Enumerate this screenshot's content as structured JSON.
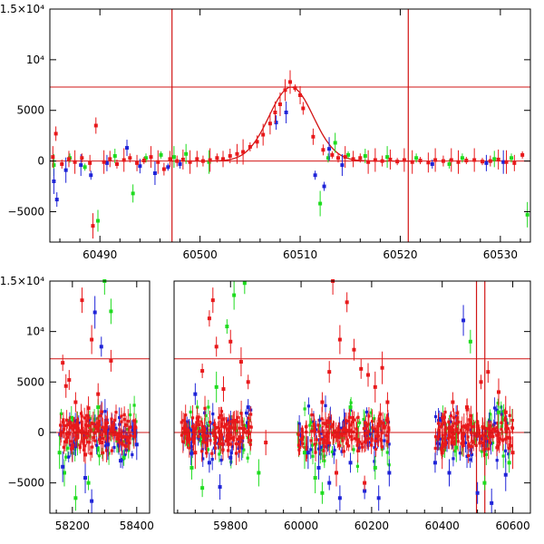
{
  "colors": {
    "red": "#e8191b",
    "green": "#1fdc1f",
    "blue": "#1f24d8",
    "line": "#d21414",
    "axis": "#000000"
  },
  "chart_data": [
    {
      "type": "scatter",
      "title": "",
      "xlabel": "",
      "ylabel": "",
      "xlim": [
        60485,
        60533
      ],
      "ylim": [
        -8000,
        15000
      ],
      "x_ticks": [
        60490,
        60500,
        60510,
        60520,
        60530
      ],
      "x_tick_labels": [
        "60490",
        "60500",
        "60510",
        "60520",
        "60530"
      ],
      "y_ticks": [
        -5000,
        0,
        5000,
        10000,
        15000
      ],
      "y_tick_labels": [
        "−5000",
        "0",
        "5000",
        "10⁴",
        "1.5×10⁴"
      ],
      "hlines": [
        0,
        7300
      ],
      "vlines": [
        60497.2,
        60520.8
      ],
      "model_curve": {
        "peak_x": 60509.1,
        "peak_y": 7300,
        "color": "red"
      },
      "series": [
        {
          "color": "red",
          "points": [
            [
              60485.3,
              400
            ],
            [
              60485.6,
              2700
            ],
            [
              60486.2,
              -300
            ],
            [
              60486.9,
              200
            ],
            [
              60487.5,
              -100
            ],
            [
              60488.2,
              300
            ],
            [
              60489.0,
              -200
            ],
            [
              60489.6,
              3500
            ],
            [
              60489.3,
              -6400
            ],
            [
              60490.4,
              -100
            ],
            [
              60491.0,
              200
            ],
            [
              60491.7,
              -300
            ],
            [
              60492.4,
              100
            ],
            [
              60493.0,
              300
            ],
            [
              60493.7,
              -200
            ],
            [
              60494.4,
              50
            ],
            [
              60495.1,
              400
            ],
            [
              60495.8,
              -100
            ],
            [
              60496.4,
              -800
            ],
            [
              60497.0,
              200
            ],
            [
              60497.7,
              0
            ],
            [
              60498.3,
              150
            ],
            [
              60499.0,
              -100
            ],
            [
              60499.7,
              200
            ],
            [
              60500.3,
              0
            ],
            [
              60501.0,
              100
            ],
            [
              60501.7,
              300
            ],
            [
              60502.3,
              200
            ],
            [
              60503.0,
              500
            ],
            [
              60503.7,
              700
            ],
            [
              60504.3,
              900
            ],
            [
              60505.0,
              1400
            ],
            [
              60505.7,
              1900
            ],
            [
              60506.3,
              2600
            ],
            [
              60507.0,
              3700
            ],
            [
              60507.5,
              4800
            ],
            [
              60508.0,
              5600
            ],
            [
              60508.5,
              7000
            ],
            [
              60509.0,
              7800
            ],
            [
              60509.5,
              7200
            ],
            [
              60510.0,
              6500
            ],
            [
              60510.3,
              5200
            ],
            [
              60511.3,
              2400
            ],
            [
              60512.3,
              1100
            ],
            [
              60513.2,
              600
            ],
            [
              60513.8,
              300
            ],
            [
              60514.5,
              400
            ],
            [
              60515.3,
              200
            ],
            [
              60516.0,
              300
            ],
            [
              60516.8,
              -100
            ],
            [
              60517.5,
              100
            ],
            [
              60518.2,
              0
            ],
            [
              60519.0,
              150
            ],
            [
              60519.7,
              -50
            ],
            [
              60520.4,
              100
            ],
            [
              60521.2,
              -100
            ],
            [
              60522.0,
              50
            ],
            [
              60522.8,
              -150
            ],
            [
              60523.5,
              100
            ],
            [
              60524.3,
              0
            ],
            [
              60525.1,
              100
            ],
            [
              60525.8,
              -100
            ],
            [
              60526.6,
              50
            ],
            [
              60527.4,
              100
            ],
            [
              60528.2,
              -50
            ],
            [
              60529.0,
              0
            ],
            [
              60529.8,
              150
            ],
            [
              60530.6,
              -100
            ],
            [
              60531.4,
              -200
            ],
            [
              60532.2,
              600
            ]
          ]
        },
        {
          "color": "green",
          "points": [
            [
              60485.4,
              -400
            ],
            [
              60487.0,
              300
            ],
            [
              60488.5,
              -600
            ],
            [
              60489.8,
              -5900
            ],
            [
              60491.5,
              500
            ],
            [
              60493.3,
              -3200
            ],
            [
              60494.6,
              300
            ],
            [
              60496.1,
              600
            ],
            [
              60497.4,
              400
            ],
            [
              60498.6,
              700
            ],
            [
              60500.9,
              -100
            ],
            [
              60512.0,
              -4200
            ],
            [
              60512.8,
              300
            ],
            [
              60513.5,
              1800
            ],
            [
              60514.8,
              600
            ],
            [
              60516.5,
              500
            ],
            [
              60518.7,
              400
            ],
            [
              60521.6,
              300
            ],
            [
              60524.9,
              -300
            ],
            [
              60526.2,
              300
            ],
            [
              60529.4,
              200
            ],
            [
              60531.1,
              300
            ],
            [
              60532.7,
              -5300
            ]
          ]
        },
        {
          "color": "blue",
          "points": [
            [
              60485.4,
              -2000
            ],
            [
              60485.7,
              -3800
            ],
            [
              60486.6,
              -900
            ],
            [
              60488.1,
              -400
            ],
            [
              60489.1,
              -1400
            ],
            [
              60490.7,
              -200
            ],
            [
              60492.7,
              1300
            ],
            [
              60494.0,
              -500
            ],
            [
              60495.5,
              -1200
            ],
            [
              60496.8,
              -600
            ],
            [
              60498.0,
              -300
            ],
            [
              60507.6,
              3800
            ],
            [
              60508.6,
              4800
            ],
            [
              60511.5,
              -1400
            ],
            [
              60512.4,
              -2500
            ],
            [
              60512.9,
              1200
            ],
            [
              60514.2,
              -400
            ],
            [
              60523.2,
              -300
            ],
            [
              60528.6,
              -200
            ],
            [
              60530.3,
              -100
            ]
          ]
        }
      ]
    },
    {
      "type": "scatter",
      "title": "",
      "xlabel": "",
      "ylabel": "",
      "segments": [
        {
          "xlim": [
            58130,
            58440
          ],
          "x_ticks": [
            58200,
            58400
          ],
          "x_tick_labels": [
            "58200",
            "58400"
          ]
        },
        {
          "xlim": [
            59640,
            60650
          ],
          "x_ticks": [
            59800,
            60000,
            60200,
            60400,
            60600
          ],
          "x_tick_labels": [
            "59800",
            "60000",
            "60200",
            "60400",
            "60600"
          ]
        }
      ],
      "ylim": [
        -8000,
        15000
      ],
      "y_ticks": [
        -5000,
        0,
        5000,
        10000,
        15000
      ],
      "y_tick_labels": [
        "−5000",
        "0",
        "5000",
        "10⁴",
        "1.5×10⁴"
      ],
      "hlines": [
        0,
        7300
      ],
      "vlines": [
        60497.2,
        60520.8
      ],
      "series": [
        {
          "color": "red",
          "points": [
            [
              58170,
              6900
            ],
            [
              58180,
              4600
            ],
            [
              58190,
              5200
            ],
            [
              58210,
              3000
            ],
            [
              58230,
              13100
            ],
            [
              58250,
              2400
            ],
            [
              58260,
              9200
            ],
            [
              58280,
              3800
            ],
            [
              58320,
              7100
            ],
            [
              58200,
              -1500
            ],
            [
              58240,
              -2200
            ],
            [
              58290,
              -1000
            ],
            [
              59700,
              -2000
            ],
            [
              59720,
              6100
            ],
            [
              59740,
              11300
            ],
            [
              59750,
              13100
            ],
            [
              59760,
              8500
            ],
            [
              59780,
              4300
            ],
            [
              59800,
              9000
            ],
            [
              59830,
              7000
            ],
            [
              59850,
              5000
            ],
            [
              59900,
              -1000
            ],
            [
              60060,
              3000
            ],
            [
              60080,
              6000
            ],
            [
              60090,
              15000
            ],
            [
              60110,
              9200
            ],
            [
              60130,
              12900
            ],
            [
              60150,
              8200
            ],
            [
              60170,
              6300
            ],
            [
              60190,
              5700
            ],
            [
              60210,
              4500
            ],
            [
              60230,
              6400
            ],
            [
              60245,
              3000
            ],
            [
              60100,
              -4000
            ],
            [
              60180,
              -5000
            ],
            [
              60400,
              -2000
            ],
            [
              60430,
              3000
            ],
            [
              60470,
              2500
            ],
            [
              60510,
              5000
            ],
            [
              60530,
              6000
            ],
            [
              60560,
              4000
            ],
            [
              60580,
              2000
            ],
            [
              60600,
              -2000
            ]
          ]
        },
        {
          "color": "green",
          "points": [
            [
              58160,
              -2000
            ],
            [
              58175,
              -4000
            ],
            [
              58210,
              -6500
            ],
            [
              58250,
              -5000
            ],
            [
              58280,
              2500
            ],
            [
              58300,
              15000
            ],
            [
              58320,
              12000
            ],
            [
              58360,
              -2500
            ],
            [
              59690,
              -3500
            ],
            [
              59720,
              -5500
            ],
            [
              59760,
              4500
            ],
            [
              59790,
              10500
            ],
            [
              59810,
              13600
            ],
            [
              59840,
              14800
            ],
            [
              59880,
              -4000
            ],
            [
              60010,
              -2000
            ],
            [
              60040,
              -4500
            ],
            [
              60060,
              -6000
            ],
            [
              60140,
              2500
            ],
            [
              60210,
              -3500
            ],
            [
              60440,
              -1500
            ],
            [
              60480,
              9000
            ],
            [
              60520,
              -5000
            ],
            [
              60560,
              2000
            ],
            [
              60590,
              -3000
            ]
          ]
        },
        {
          "color": "blue",
          "points": [
            [
              58170,
              -3400
            ],
            [
              58200,
              -1500
            ],
            [
              58240,
              -4500
            ],
            [
              58260,
              -6800
            ],
            [
              58270,
              11900
            ],
            [
              58290,
              8500
            ],
            [
              58310,
              -1200
            ],
            [
              58350,
              -2800
            ],
            [
              58400,
              -1200
            ],
            [
              59700,
              3800
            ],
            [
              59740,
              -3000
            ],
            [
              59770,
              -5400
            ],
            [
              59800,
              -2500
            ],
            [
              59850,
              2500
            ],
            [
              60020,
              -2000
            ],
            [
              60050,
              -3500
            ],
            [
              60080,
              -5000
            ],
            [
              60110,
              -6500
            ],
            [
              60140,
              -3000
            ],
            [
              60180,
              -5800
            ],
            [
              60220,
              -6500
            ],
            [
              60250,
              -4000
            ],
            [
              60380,
              -3000
            ],
            [
              60420,
              -4000
            ],
            [
              60460,
              11100
            ],
            [
              60500,
              -6000
            ],
            [
              60540,
              -7000
            ],
            [
              60580,
              -4200
            ]
          ]
        }
      ]
    }
  ]
}
